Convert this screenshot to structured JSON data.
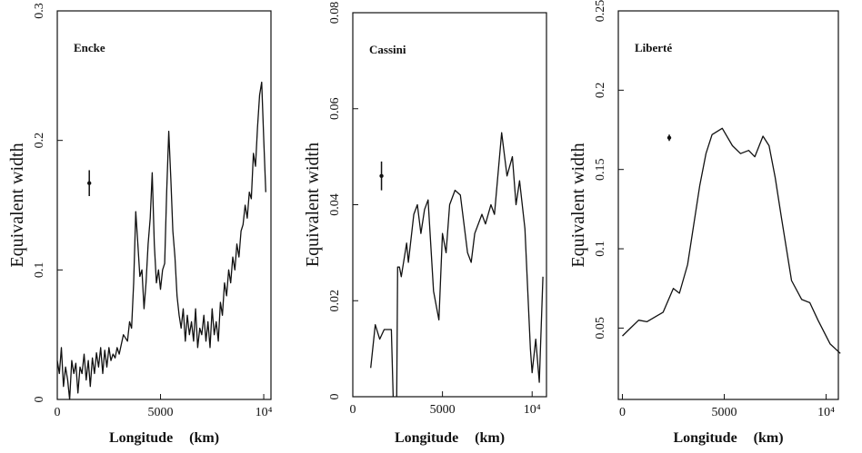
{
  "chart_data": [
    {
      "type": "line",
      "title": "Encke",
      "xlabel": "Longitude (km)",
      "ylabel": "Equivalent width",
      "xlim": [
        0,
        10350
      ],
      "ylim": [
        0,
        0.3
      ],
      "xticks": [
        0,
        5000,
        {
          "value": 10000,
          "label": "10⁴"
        }
      ],
      "yticks": [
        0,
        0.1,
        0.2,
        0.3
      ],
      "error_bar": {
        "x": 1550,
        "y": 0.167,
        "error": 0.01
      },
      "x": [
        0,
        100,
        200,
        300,
        400,
        500,
        600,
        700,
        800,
        900,
        1000,
        1100,
        1200,
        1300,
        1400,
        1500,
        1600,
        1700,
        1800,
        1900,
        2000,
        2100,
        2200,
        2300,
        2400,
        2500,
        2600,
        2700,
        2800,
        2900,
        3000,
        3200,
        3400,
        3500,
        3600,
        3700,
        3800,
        3900,
        4000,
        4100,
        4200,
        4300,
        4400,
        4500,
        4600,
        4700,
        4800,
        4900,
        5000,
        5100,
        5200,
        5300,
        5400,
        5500,
        5600,
        5700,
        5800,
        5900,
        6000,
        6100,
        6200,
        6300,
        6400,
        6500,
        6600,
        6700,
        6800,
        6900,
        7000,
        7100,
        7200,
        7300,
        7400,
        7500,
        7600,
        7700,
        7800,
        7900,
        8000,
        8100,
        8200,
        8300,
        8400,
        8500,
        8600,
        8700,
        8800,
        8900,
        9000,
        9100,
        9200,
        9300,
        9400,
        9500,
        9600,
        9700,
        9800,
        9900,
        10000,
        10100
      ],
      "values": [
        0.03,
        0.02,
        0.04,
        0.01,
        0.025,
        0.015,
        0.0,
        0.03,
        0.02,
        0.028,
        0.005,
        0.025,
        0.02,
        0.035,
        0.015,
        0.03,
        0.01,
        0.032,
        0.02,
        0.036,
        0.025,
        0.04,
        0.02,
        0.038,
        0.025,
        0.04,
        0.03,
        0.035,
        0.032,
        0.04,
        0.035,
        0.05,
        0.045,
        0.06,
        0.055,
        0.09,
        0.145,
        0.12,
        0.095,
        0.1,
        0.07,
        0.09,
        0.12,
        0.14,
        0.175,
        0.12,
        0.09,
        0.1,
        0.085,
        0.1,
        0.105,
        0.16,
        0.207,
        0.17,
        0.13,
        0.11,
        0.08,
        0.065,
        0.055,
        0.07,
        0.045,
        0.065,
        0.05,
        0.06,
        0.045,
        0.07,
        0.04,
        0.055,
        0.05,
        0.065,
        0.045,
        0.06,
        0.04,
        0.07,
        0.05,
        0.06,
        0.045,
        0.075,
        0.065,
        0.09,
        0.08,
        0.1,
        0.09,
        0.11,
        0.1,
        0.12,
        0.11,
        0.13,
        0.135,
        0.15,
        0.14,
        0.16,
        0.155,
        0.19,
        0.18,
        0.21,
        0.235,
        0.245,
        0.2,
        0.16
      ]
    },
    {
      "type": "line",
      "title": "Cassini",
      "xlabel": "Longitude (km)",
      "ylabel": "Equivalent width",
      "xlim": [
        0,
        10800
      ],
      "ylim": [
        0,
        0.08
      ],
      "xticks": [
        0,
        5000,
        {
          "value": 10000,
          "label": "10⁴"
        }
      ],
      "yticks": [
        0,
        0.02,
        0.04,
        0.06,
        0.08
      ],
      "error_bar": {
        "x": 1600,
        "y": 0.046,
        "error": 0.003
      },
      "x": [
        1000,
        1250,
        1500,
        1750,
        2150,
        2250,
        2350,
        2450,
        2500,
        2600,
        2700,
        3000,
        3100,
        3400,
        3600,
        3800,
        4000,
        4200,
        4500,
        4700,
        4800,
        5000,
        5200,
        5400,
        5700,
        6000,
        6400,
        6600,
        6800,
        7200,
        7400,
        7700,
        7900,
        8300,
        8600,
        8900,
        9100,
        9300,
        9600,
        9900,
        10000,
        10200,
        10400,
        10600
      ],
      "values": [
        0.006,
        0.015,
        0.012,
        0.014,
        0.014,
        0.0,
        null,
        0.0,
        0.027,
        0.027,
        0.025,
        0.032,
        0.028,
        0.038,
        0.04,
        0.034,
        0.039,
        0.041,
        0.022,
        0.018,
        0.016,
        0.034,
        0.03,
        0.04,
        0.043,
        0.042,
        0.03,
        0.028,
        0.034,
        0.038,
        0.036,
        0.04,
        0.038,
        0.055,
        0.046,
        0.05,
        0.04,
        0.045,
        0.035,
        0.01,
        0.005,
        0.012,
        0.003,
        0.025
      ]
    },
    {
      "type": "line",
      "title": "Liberté",
      "xlabel": "Longitude (km)",
      "ylabel": "Equivalent width",
      "xlim": [
        -200,
        10600
      ],
      "ylim": [
        0.005,
        0.25
      ],
      "xticks": [
        0,
        5000,
        {
          "value": 10000,
          "label": "10⁴"
        }
      ],
      "yticks": [
        0.05,
        0.1,
        0.15,
        0.2,
        0.25
      ],
      "error_bar": {
        "x": 2300,
        "y": 0.17,
        "error": 0.002
      },
      "x": [
        0,
        400,
        800,
        1200,
        1600,
        2000,
        2500,
        2800,
        3200,
        3500,
        3800,
        4100,
        4400,
        4900,
        5400,
        5800,
        6200,
        6500,
        6900,
        7200,
        7500,
        7800,
        8300,
        8800,
        9200,
        9600,
        10200,
        10700
      ],
      "values": [
        0.045,
        0.05,
        0.055,
        0.054,
        0.057,
        0.06,
        0.075,
        0.072,
        0.09,
        0.115,
        0.14,
        0.16,
        0.172,
        0.176,
        0.165,
        0.16,
        0.162,
        0.158,
        0.171,
        0.165,
        0.145,
        0.12,
        0.08,
        0.068,
        0.066,
        0.055,
        0.04,
        0.034
      ]
    }
  ]
}
